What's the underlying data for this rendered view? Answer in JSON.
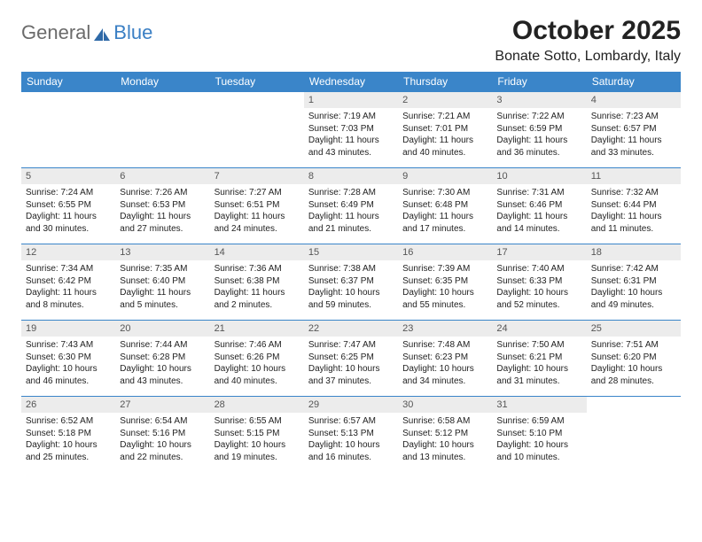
{
  "brand": {
    "word1": "General",
    "word2": "Blue",
    "word1_color": "#6b6b6b",
    "word2_color": "#3a7fc4",
    "sail_color": "#2f6aa8"
  },
  "title": {
    "month_label": "October 2025",
    "location": "Bonate Sotto, Lombardy, Italy"
  },
  "styling": {
    "header_bg": "#3a85c9",
    "header_text_color": "#ffffff",
    "daynum_bg": "#ececec",
    "daynum_color": "#555555",
    "cell_text_color": "#222222",
    "row_border_color": "#3a85c9",
    "font_family": "Arial, Helvetica, sans-serif",
    "header_fontsize": 12,
    "body_fontsize": 10,
    "title_fontsize": 30,
    "location_fontsize": 16
  },
  "columns": [
    "Sunday",
    "Monday",
    "Tuesday",
    "Wednesday",
    "Thursday",
    "Friday",
    "Saturday"
  ],
  "weeks": [
    [
      {
        "empty": true
      },
      {
        "empty": true
      },
      {
        "empty": true
      },
      {
        "day": "1",
        "sunrise": "7:19 AM",
        "sunset": "7:03 PM",
        "daylight": "11 hours and 43 minutes."
      },
      {
        "day": "2",
        "sunrise": "7:21 AM",
        "sunset": "7:01 PM",
        "daylight": "11 hours and 40 minutes."
      },
      {
        "day": "3",
        "sunrise": "7:22 AM",
        "sunset": "6:59 PM",
        "daylight": "11 hours and 36 minutes."
      },
      {
        "day": "4",
        "sunrise": "7:23 AM",
        "sunset": "6:57 PM",
        "daylight": "11 hours and 33 minutes."
      }
    ],
    [
      {
        "day": "5",
        "sunrise": "7:24 AM",
        "sunset": "6:55 PM",
        "daylight": "11 hours and 30 minutes."
      },
      {
        "day": "6",
        "sunrise": "7:26 AM",
        "sunset": "6:53 PM",
        "daylight": "11 hours and 27 minutes."
      },
      {
        "day": "7",
        "sunrise": "7:27 AM",
        "sunset": "6:51 PM",
        "daylight": "11 hours and 24 minutes."
      },
      {
        "day": "8",
        "sunrise": "7:28 AM",
        "sunset": "6:49 PM",
        "daylight": "11 hours and 21 minutes."
      },
      {
        "day": "9",
        "sunrise": "7:30 AM",
        "sunset": "6:48 PM",
        "daylight": "11 hours and 17 minutes."
      },
      {
        "day": "10",
        "sunrise": "7:31 AM",
        "sunset": "6:46 PM",
        "daylight": "11 hours and 14 minutes."
      },
      {
        "day": "11",
        "sunrise": "7:32 AM",
        "sunset": "6:44 PM",
        "daylight": "11 hours and 11 minutes."
      }
    ],
    [
      {
        "day": "12",
        "sunrise": "7:34 AM",
        "sunset": "6:42 PM",
        "daylight": "11 hours and 8 minutes."
      },
      {
        "day": "13",
        "sunrise": "7:35 AM",
        "sunset": "6:40 PM",
        "daylight": "11 hours and 5 minutes."
      },
      {
        "day": "14",
        "sunrise": "7:36 AM",
        "sunset": "6:38 PM",
        "daylight": "11 hours and 2 minutes."
      },
      {
        "day": "15",
        "sunrise": "7:38 AM",
        "sunset": "6:37 PM",
        "daylight": "10 hours and 59 minutes."
      },
      {
        "day": "16",
        "sunrise": "7:39 AM",
        "sunset": "6:35 PM",
        "daylight": "10 hours and 55 minutes."
      },
      {
        "day": "17",
        "sunrise": "7:40 AM",
        "sunset": "6:33 PM",
        "daylight": "10 hours and 52 minutes."
      },
      {
        "day": "18",
        "sunrise": "7:42 AM",
        "sunset": "6:31 PM",
        "daylight": "10 hours and 49 minutes."
      }
    ],
    [
      {
        "day": "19",
        "sunrise": "7:43 AM",
        "sunset": "6:30 PM",
        "daylight": "10 hours and 46 minutes."
      },
      {
        "day": "20",
        "sunrise": "7:44 AM",
        "sunset": "6:28 PM",
        "daylight": "10 hours and 43 minutes."
      },
      {
        "day": "21",
        "sunrise": "7:46 AM",
        "sunset": "6:26 PM",
        "daylight": "10 hours and 40 minutes."
      },
      {
        "day": "22",
        "sunrise": "7:47 AM",
        "sunset": "6:25 PM",
        "daylight": "10 hours and 37 minutes."
      },
      {
        "day": "23",
        "sunrise": "7:48 AM",
        "sunset": "6:23 PM",
        "daylight": "10 hours and 34 minutes."
      },
      {
        "day": "24",
        "sunrise": "7:50 AM",
        "sunset": "6:21 PM",
        "daylight": "10 hours and 31 minutes."
      },
      {
        "day": "25",
        "sunrise": "7:51 AM",
        "sunset": "6:20 PM",
        "daylight": "10 hours and 28 minutes."
      }
    ],
    [
      {
        "day": "26",
        "sunrise": "6:52 AM",
        "sunset": "5:18 PM",
        "daylight": "10 hours and 25 minutes."
      },
      {
        "day": "27",
        "sunrise": "6:54 AM",
        "sunset": "5:16 PM",
        "daylight": "10 hours and 22 minutes."
      },
      {
        "day": "28",
        "sunrise": "6:55 AM",
        "sunset": "5:15 PM",
        "daylight": "10 hours and 19 minutes."
      },
      {
        "day": "29",
        "sunrise": "6:57 AM",
        "sunset": "5:13 PM",
        "daylight": "10 hours and 16 minutes."
      },
      {
        "day": "30",
        "sunrise": "6:58 AM",
        "sunset": "5:12 PM",
        "daylight": "10 hours and 13 minutes."
      },
      {
        "day": "31",
        "sunrise": "6:59 AM",
        "sunset": "5:10 PM",
        "daylight": "10 hours and 10 minutes."
      },
      {
        "empty": true
      }
    ]
  ],
  "labels": {
    "sunrise": "Sunrise:",
    "sunset": "Sunset:",
    "daylight": "Daylight:"
  }
}
